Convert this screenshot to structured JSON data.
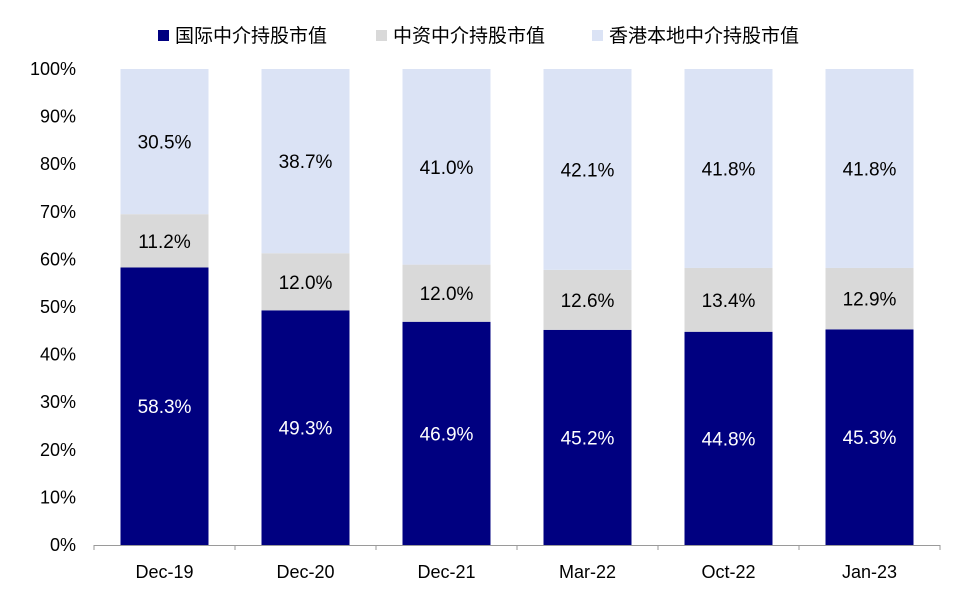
{
  "chart_data": {
    "type": "bar",
    "stacked": true,
    "title": "",
    "xlabel": "",
    "ylabel": "",
    "categories": [
      "Dec-19",
      "Dec-20",
      "Dec-21",
      "Mar-22",
      "Oct-22",
      "Jan-23"
    ],
    "ylim": [
      0,
      100
    ],
    "yticks": [
      "0%",
      "10%",
      "20%",
      "30%",
      "40%",
      "50%",
      "60%",
      "70%",
      "80%",
      "90%",
      "100%"
    ],
    "grid": false,
    "legend_position": "top",
    "series": [
      {
        "name": "国际中介持股市值",
        "color": "#000080",
        "label_color": "#ffffff",
        "values": [
          58.3,
          49.3,
          46.9,
          45.2,
          44.8,
          45.3
        ],
        "labels": [
          "58.3%",
          "49.3%",
          "46.9%",
          "45.2%",
          "44.8%",
          "45.3%"
        ]
      },
      {
        "name": "中资中介持股市值",
        "color": "#d9d9d9",
        "label_color": "#000000",
        "values": [
          11.2,
          12.0,
          12.0,
          12.6,
          13.4,
          12.9
        ],
        "labels": [
          "11.2%",
          "12.0%",
          "12.0%",
          "12.6%",
          "13.4%",
          "12.9%"
        ]
      },
      {
        "name": "香港本地中介持股市值",
        "color": "#dbe3f5",
        "label_color": "#000000",
        "values": [
          30.5,
          38.7,
          41.0,
          42.1,
          41.8,
          41.8
        ],
        "labels": [
          "30.5%",
          "38.7%",
          "41.0%",
          "42.1%",
          "41.8%",
          "41.8%"
        ]
      }
    ]
  }
}
